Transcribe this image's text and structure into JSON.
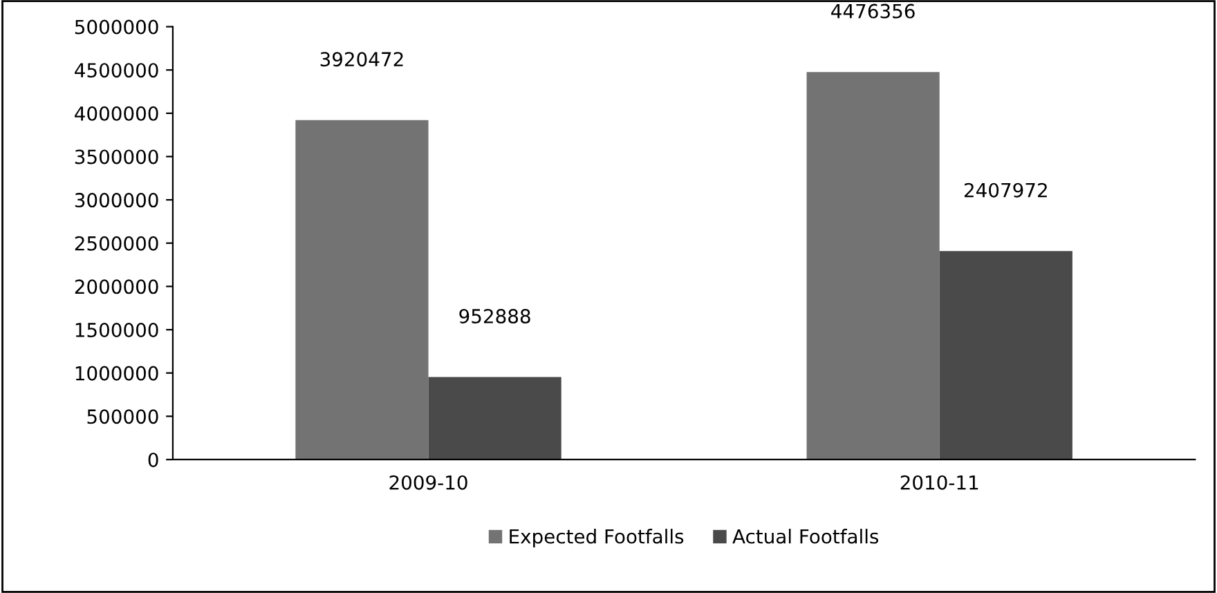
{
  "chart_data": {
    "type": "bar",
    "categories": [
      "2009-10",
      "2010-11"
    ],
    "series": [
      {
        "name": "Expected Footfalls",
        "color": "#737373",
        "values": [
          3920472,
          4476356
        ]
      },
      {
        "name": "Actual Footfalls",
        "color": "#4a4a4a",
        "values": [
          952888,
          2407972
        ]
      }
    ],
    "ylim": [
      0,
      5000000
    ],
    "yticks": [
      0,
      500000,
      1000000,
      1500000,
      2000000,
      2500000,
      3000000,
      3500000,
      4000000,
      4500000,
      5000000
    ],
    "data_labels": true,
    "grid": false,
    "legend": "bottom"
  }
}
